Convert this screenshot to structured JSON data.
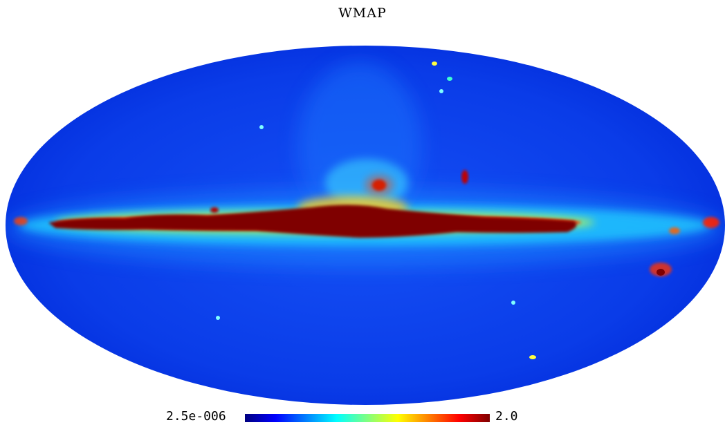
{
  "title": "WMAP",
  "projection": "mollweide",
  "colorbar": {
    "min_label": "2.5e-006",
    "max_label": "2.0",
    "colormap": "jet",
    "colors": [
      "#00007f",
      "#0000ff",
      "#0080ff",
      "#00ffff",
      "#80ff80",
      "#ffff00",
      "#ff8000",
      "#ff0000",
      "#7f0000"
    ]
  },
  "colors": {
    "background": "#ffffff",
    "map_base": "#0a3cf0",
    "galactic_plane_core": "#7f0000",
    "galactic_plane_halo": "#ff2000"
  }
}
